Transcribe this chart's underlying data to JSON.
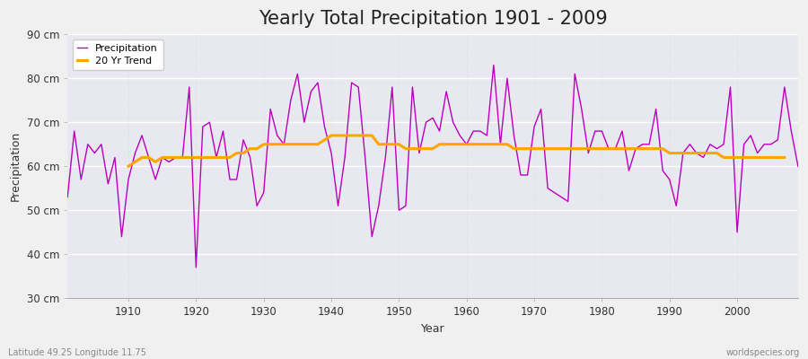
{
  "title": "Yearly Total Precipitation 1901 - 2009",
  "xlabel": "Year",
  "ylabel": "Precipitation",
  "bottom_left_label": "Latitude 49.25 Longitude 11.75",
  "bottom_right_label": "worldspecies.org",
  "years": [
    1901,
    1902,
    1903,
    1904,
    1905,
    1906,
    1907,
    1908,
    1909,
    1910,
    1911,
    1912,
    1913,
    1914,
    1915,
    1916,
    1917,
    1918,
    1919,
    1920,
    1921,
    1922,
    1923,
    1924,
    1925,
    1926,
    1927,
    1928,
    1929,
    1930,
    1931,
    1932,
    1933,
    1934,
    1935,
    1936,
    1937,
    1938,
    1939,
    1940,
    1941,
    1942,
    1943,
    1944,
    1945,
    1946,
    1947,
    1948,
    1949,
    1950,
    1951,
    1952,
    1953,
    1954,
    1955,
    1956,
    1957,
    1958,
    1959,
    1960,
    1961,
    1962,
    1963,
    1964,
    1965,
    1966,
    1967,
    1968,
    1969,
    1970,
    1971,
    1972,
    1973,
    1974,
    1975,
    1976,
    1977,
    1978,
    1979,
    1980,
    1981,
    1982,
    1983,
    1984,
    1985,
    1986,
    1987,
    1988,
    1989,
    1990,
    1991,
    1992,
    1993,
    1994,
    1995,
    1996,
    1997,
    1998,
    1999,
    2000,
    2001,
    2002,
    2003,
    2004,
    2005,
    2006,
    2007,
    2008,
    2009
  ],
  "precipitation": [
    53,
    68,
    57,
    65,
    63,
    65,
    56,
    62,
    44,
    57,
    63,
    67,
    62,
    57,
    62,
    61,
    62,
    62,
    78,
    37,
    69,
    70,
    62,
    68,
    57,
    57,
    66,
    62,
    51,
    54,
    73,
    67,
    65,
    75,
    81,
    70,
    77,
    79,
    69,
    63,
    51,
    62,
    79,
    78,
    62,
    44,
    51,
    62,
    78,
    50,
    51,
    78,
    63,
    70,
    71,
    68,
    77,
    70,
    67,
    65,
    68,
    68,
    67,
    83,
    65,
    80,
    67,
    58,
    58,
    69,
    73,
    55,
    54,
    53,
    52,
    81,
    73,
    63,
    68,
    68,
    64,
    64,
    68,
    59,
    64,
    65,
    65,
    73,
    59,
    57,
    51,
    63,
    65,
    63,
    62,
    65,
    64,
    65,
    78,
    45,
    65,
    67,
    63,
    65,
    65,
    66,
    78,
    68,
    60
  ],
  "trend": [
    null,
    null,
    null,
    null,
    null,
    null,
    null,
    null,
    null,
    60,
    61,
    62,
    62,
    61,
    62,
    62,
    62,
    62,
    62,
    62,
    62,
    62,
    62,
    62,
    62,
    63,
    63,
    64,
    64,
    65,
    65,
    65,
    65,
    65,
    65,
    65,
    65,
    65,
    66,
    67,
    67,
    67,
    67,
    67,
    67,
    67,
    65,
    65,
    65,
    65,
    64,
    64,
    64,
    64,
    64,
    65,
    65,
    65,
    65,
    65,
    65,
    65,
    65,
    65,
    65,
    65,
    64,
    64,
    64,
    64,
    64,
    64,
    64,
    64,
    64,
    64,
    64,
    64,
    64,
    64,
    64,
    64,
    64,
    64,
    64,
    64,
    64,
    64,
    64,
    63,
    63,
    63,
    63,
    63,
    63,
    63,
    63,
    62,
    62,
    62,
    62,
    62,
    62,
    62,
    62,
    62,
    62,
    null,
    null
  ],
  "precip_color": "#bb00bb",
  "trend_color": "#ffa500",
  "fig_background": "#f0f0f0",
  "plot_background": "#e8e8f0",
  "grid_color_h": "#ffffff",
  "grid_color_v": "#d8d8d8",
  "ylim": [
    30,
    90
  ],
  "yticks": [
    30,
    40,
    50,
    60,
    70,
    80,
    90
  ],
  "ytick_labels": [
    "30 cm",
    "40 cm",
    "50 cm",
    "60 cm",
    "70 cm",
    "80 cm",
    "90 cm"
  ],
  "title_fontsize": 15,
  "axis_label_fontsize": 9,
  "tick_fontsize": 8.5,
  "legend_fontsize": 8
}
